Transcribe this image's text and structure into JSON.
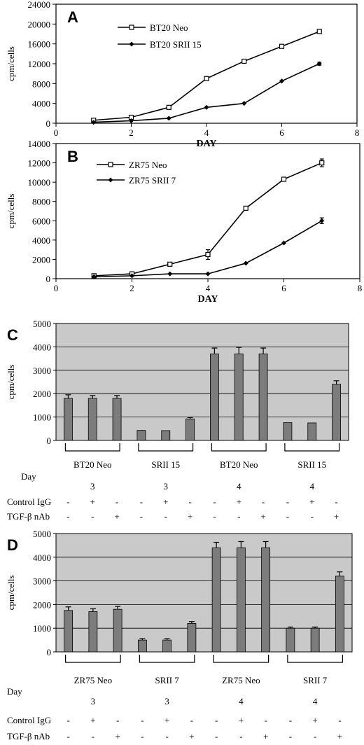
{
  "chart_data": [
    {
      "type": "line",
      "panel": "A",
      "xlabel": "DAY",
      "ylabel": "cpm/cells",
      "xlim": [
        0,
        8
      ],
      "ylim": [
        0,
        24000
      ],
      "xticks": [
        0,
        2,
        4,
        6,
        8
      ],
      "yticks": [
        0,
        4000,
        8000,
        12000,
        16000,
        20000,
        24000
      ],
      "legend_position": "top-center",
      "x": [
        1,
        2,
        3,
        4,
        5,
        6,
        7
      ],
      "series": [
        {
          "name": "BT20 Neo",
          "marker": "square",
          "values": [
            600,
            1200,
            3200,
            9000,
            12500,
            15500,
            18500
          ],
          "err": [
            0,
            0,
            0,
            0,
            300,
            200,
            300
          ]
        },
        {
          "name": "BT20 SRII 15",
          "marker": "diamond",
          "values": [
            200,
            500,
            1000,
            3200,
            4000,
            8500,
            12000
          ],
          "err": [
            0,
            0,
            0,
            0,
            0,
            0,
            300
          ]
        }
      ]
    },
    {
      "type": "line",
      "panel": "B",
      "xlabel": "DAY",
      "ylabel": "cpm/cells",
      "xlim": [
        0,
        8
      ],
      "ylim": [
        0,
        14000
      ],
      "xticks": [
        0,
        2,
        4,
        6,
        8
      ],
      "yticks": [
        0,
        2000,
        4000,
        6000,
        8000,
        10000,
        12000,
        14000
      ],
      "legend_position": "top-left",
      "x": [
        1,
        2,
        3,
        4,
        5,
        6,
        7
      ],
      "series": [
        {
          "name": "ZR75 Neo",
          "marker": "square",
          "values": [
            300,
            500,
            1500,
            2500,
            7300,
            10300,
            12000
          ],
          "err": [
            0,
            0,
            0,
            500,
            0,
            200,
            400
          ]
        },
        {
          "name": "ZR75 SRII 7",
          "marker": "diamond",
          "values": [
            200,
            300,
            500,
            500,
            1600,
            3700,
            6000
          ],
          "err": [
            0,
            0,
            0,
            0,
            0,
            0,
            300
          ]
        }
      ]
    },
    {
      "type": "bar",
      "panel": "C",
      "ylabel": "cpm/cells",
      "ylim": [
        0,
        5000
      ],
      "yticks": [
        0,
        1000,
        2000,
        3000,
        4000,
        5000
      ],
      "grid": false,
      "groups": [
        {
          "label": "BT20 Neo",
          "day": "3",
          "values": [
            1800,
            1800,
            1800
          ],
          "err": [
            150,
            120,
            120
          ]
        },
        {
          "label": "SRII 15",
          "day": "3",
          "values": [
            430,
            420,
            920
          ],
          "err": [
            0,
            0,
            60
          ]
        },
        {
          "label": "BT20 Neo",
          "day": "4",
          "values": [
            3700,
            3700,
            3700
          ],
          "err": [
            250,
            280,
            250
          ]
        },
        {
          "label": "SRII 15",
          "day": "4",
          "values": [
            760,
            750,
            2400
          ],
          "err": [
            0,
            0,
            150
          ]
        }
      ],
      "row_labels": {
        "day": "Day",
        "igg": "Control IgG",
        "nab": "TGF-β nAb"
      },
      "igg_marks": [
        "-",
        "+",
        "-"
      ],
      "nab_marks": [
        "-",
        "-",
        "+"
      ]
    },
    {
      "type": "bar",
      "panel": "D",
      "ylabel": "cpm/cells",
      "ylim": [
        0,
        5000
      ],
      "yticks": [
        0,
        1000,
        2000,
        3000,
        4000,
        5000
      ],
      "grid": false,
      "groups": [
        {
          "label": "ZR75 Neo",
          "day": "3",
          "values": [
            1750,
            1700,
            1800
          ],
          "err": [
            150,
            120,
            120
          ]
        },
        {
          "label": "SRII 7",
          "day": "3",
          "values": [
            500,
            500,
            1200
          ],
          "err": [
            60,
            60,
            80
          ]
        },
        {
          "label": "ZR75 Neo",
          "day": "4",
          "values": [
            4400,
            4400,
            4400
          ],
          "err": [
            230,
            260,
            260
          ]
        },
        {
          "label": "SRII 7",
          "day": "4",
          "values": [
            1000,
            1000,
            3200
          ],
          "err": [
            50,
            50,
            180
          ]
        }
      ],
      "row_labels": {
        "day": "Day",
        "igg": "Control IgG",
        "nab": "TGF-β nAb"
      },
      "igg_marks": [
        "-",
        "+",
        "-"
      ],
      "nab_marks": [
        "-",
        "-",
        "+"
      ]
    }
  ]
}
